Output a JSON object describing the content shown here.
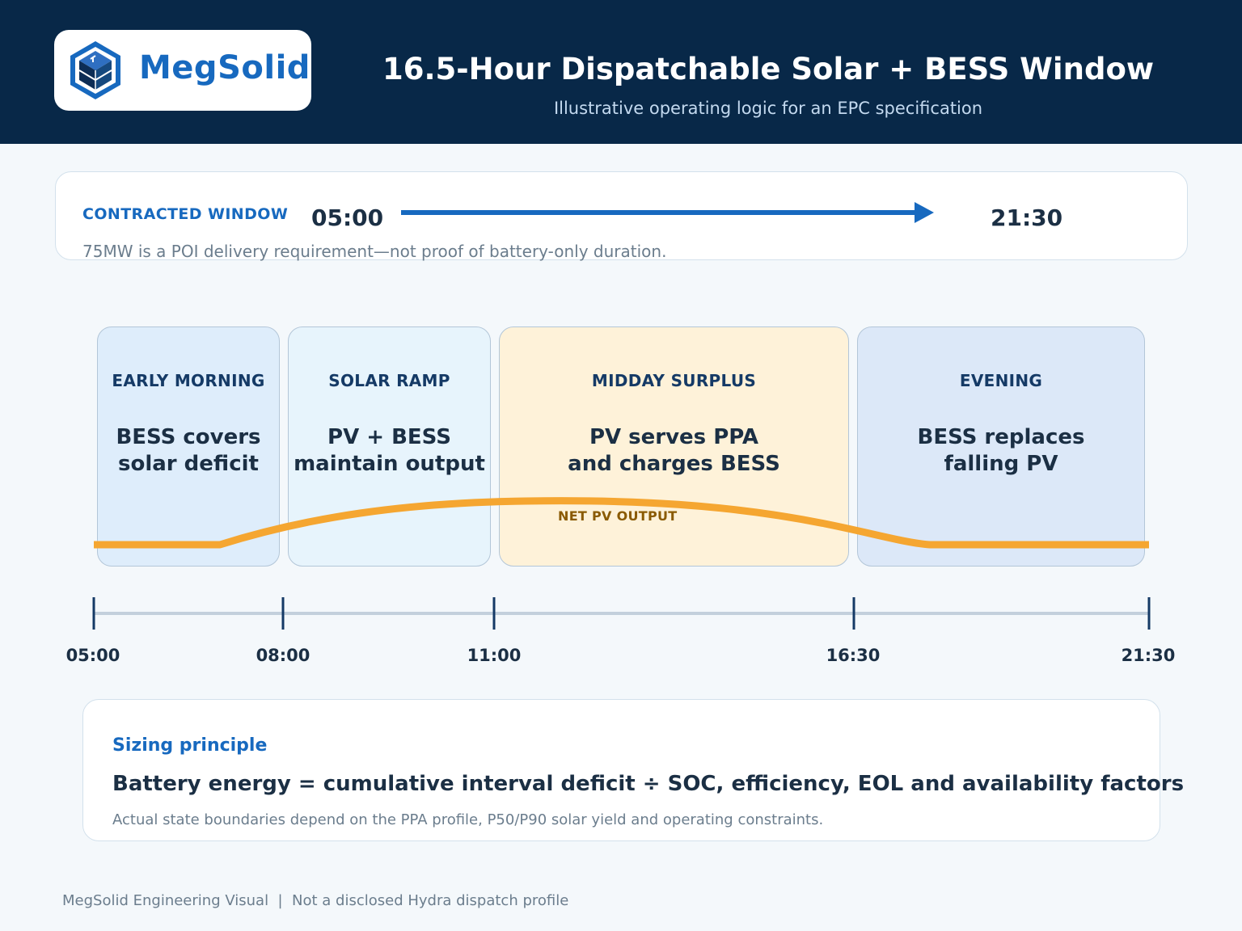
{
  "header": {
    "logo_text": "MegSolid",
    "logo_icon": "cube-logo-icon",
    "title": "16.5-Hour Dispatchable Solar + BESS Window",
    "subtitle": "Illustrative operating logic for an EPC specification"
  },
  "window": {
    "label": "CONTRACTED WINDOW",
    "start": "05:00",
    "end": "21:30",
    "note": "75MW is a POI delivery requirement—not proof of battery-only duration."
  },
  "phases": [
    {
      "heading": "EARLY MORNING",
      "line1": "BESS covers",
      "line2": "solar deficit",
      "color": "#deedfb"
    },
    {
      "heading": "SOLAR RAMP",
      "line1": "PV + BESS",
      "line2": "maintain output",
      "color": "#e7f4fc"
    },
    {
      "heading": "MIDDAY SURPLUS",
      "line1": "PV serves PPA",
      "line2": "and charges BESS",
      "color": "#fef2d9"
    },
    {
      "heading": "EVENING",
      "line1": "BESS replaces",
      "line2": "falling PV",
      "color": "#dce8f8"
    }
  ],
  "pv_curve": {
    "label": "NET PV OUTPUT",
    "color": "#f5a631"
  },
  "timeline": {
    "ticks": [
      "05:00",
      "08:00",
      "11:00",
      "16:30",
      "21:30"
    ]
  },
  "sizing": {
    "label": "Sizing principle",
    "formula": "Battery energy = cumulative interval deficit ÷ SOC, efficiency, EOL and availability factors",
    "note": "Actual state boundaries depend on the PPA profile, P50/P90 solar yield and operating constraints."
  },
  "footer": "MegSolid Engineering Visual  |  Not a disclosed Hydra dispatch profile",
  "colors": {
    "navy": "#082848",
    "accent_blue": "#1769bf",
    "pv_orange": "#f5a631"
  }
}
